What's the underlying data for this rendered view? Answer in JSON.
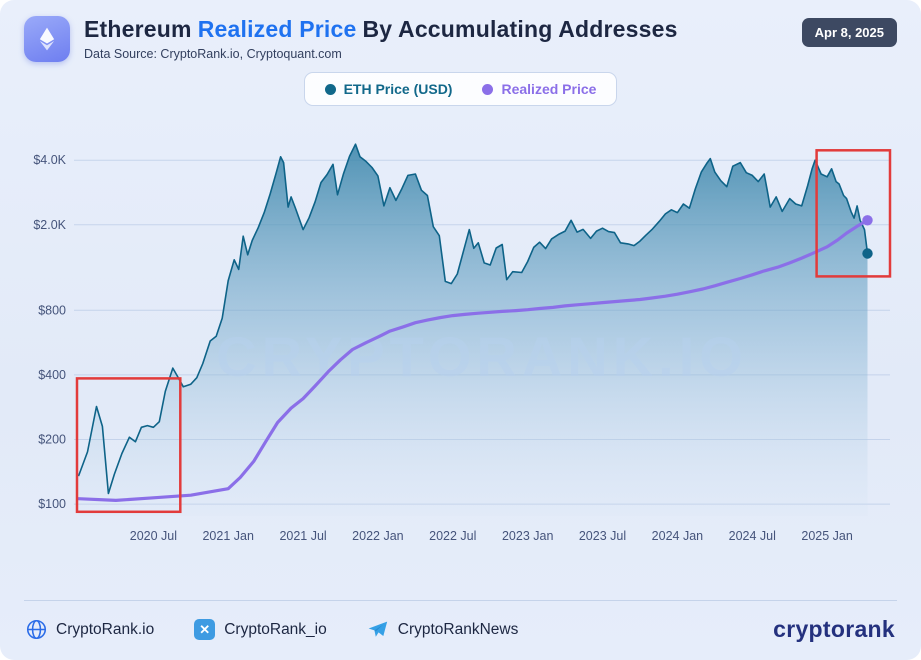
{
  "header": {
    "title_part1": "Ethereum",
    "title_highlight": "Realized Price",
    "title_part2": "By Accumulating Addresses",
    "subtitle": "Data Source: CryptoRank.io, Cryptoquant.com",
    "date_badge": "Apr 8, 2025"
  },
  "legend": {
    "items": [
      {
        "label": "ETH Price (USD)",
        "color": "#11688a"
      },
      {
        "label": "Realized Price",
        "color": "#8b6fe8"
      }
    ]
  },
  "watermark": "CRYPTORANK.IO",
  "footer": {
    "links": [
      {
        "icon": "globe-icon",
        "label": "CryptoRank.io"
      },
      {
        "icon": "x-icon",
        "label": "CryptoRank_io"
      },
      {
        "icon": "telegram-icon",
        "label": "CryptoRankNews"
      }
    ],
    "brand": "cryptorank"
  },
  "chart_data": {
    "type": "line",
    "y_scale": "log",
    "grid": "horizontal",
    "legend_position": "top-center",
    "xlim": [
      2019.97,
      2025.42
    ],
    "ylim": [
      88,
      5300
    ],
    "y_ticks": [
      {
        "value": 100,
        "label": "$100"
      },
      {
        "value": 200,
        "label": "$200"
      },
      {
        "value": 400,
        "label": "$400"
      },
      {
        "value": 800,
        "label": "$800"
      },
      {
        "value": 2000,
        "label": "$2.0K"
      },
      {
        "value": 4000,
        "label": "$4.0K"
      }
    ],
    "x_ticks": [
      {
        "value": 2020.5,
        "label": "2020 Jul"
      },
      {
        "value": 2021.0,
        "label": "2021 Jan"
      },
      {
        "value": 2021.5,
        "label": "2021 Jul"
      },
      {
        "value": 2022.0,
        "label": "2022 Jan"
      },
      {
        "value": 2022.5,
        "label": "2022 Jul"
      },
      {
        "value": 2023.0,
        "label": "2023 Jan"
      },
      {
        "value": 2023.5,
        "label": "2023 Jul"
      },
      {
        "value": 2024.0,
        "label": "2024 Jan"
      },
      {
        "value": 2024.5,
        "label": "2024 Jul"
      },
      {
        "value": 2025.0,
        "label": "2025 Jan"
      }
    ],
    "series": [
      {
        "name": "ETH Price (USD)",
        "style": "area",
        "color": "#0e6388",
        "x": [
          2020.0,
          2020.06,
          2020.12,
          2020.16,
          2020.2,
          2020.24,
          2020.29,
          2020.34,
          2020.38,
          2020.42,
          2020.46,
          2020.5,
          2020.54,
          2020.58,
          2020.63,
          2020.66,
          2020.7,
          2020.75,
          2020.79,
          2020.83,
          2020.88,
          2020.92,
          2020.96,
          2021.0,
          2021.04,
          2021.07,
          2021.1,
          2021.13,
          2021.16,
          2021.2,
          2021.24,
          2021.28,
          2021.32,
          2021.35,
          2021.37,
          2021.4,
          2021.42,
          2021.45,
          2021.5,
          2021.54,
          2021.58,
          2021.62,
          2021.66,
          2021.7,
          2021.73,
          2021.77,
          2021.81,
          2021.85,
          2021.88,
          2021.92,
          2021.96,
          2022.0,
          2022.04,
          2022.08,
          2022.12,
          2022.16,
          2022.2,
          2022.25,
          2022.29,
          2022.33,
          2022.37,
          2022.41,
          2022.45,
          2022.49,
          2022.53,
          2022.58,
          2022.61,
          2022.64,
          2022.67,
          2022.71,
          2022.75,
          2022.79,
          2022.83,
          2022.86,
          2022.9,
          2022.96,
          2023.0,
          2023.04,
          2023.08,
          2023.12,
          2023.16,
          2023.21,
          2023.25,
          2023.29,
          2023.33,
          2023.37,
          2023.42,
          2023.46,
          2023.5,
          2023.54,
          2023.58,
          2023.62,
          2023.67,
          2023.71,
          2023.75,
          2023.79,
          2023.83,
          2023.88,
          2023.92,
          2023.96,
          2024.0,
          2024.04,
          2024.08,
          2024.12,
          2024.16,
          2024.2,
          2024.22,
          2024.25,
          2024.29,
          2024.33,
          2024.37,
          2024.42,
          2024.46,
          2024.5,
          2024.54,
          2024.58,
          2024.6,
          2024.62,
          2024.66,
          2024.7,
          2024.75,
          2024.79,
          2024.83,
          2024.87,
          2024.9,
          2024.92,
          2024.96,
          2025.0,
          2025.03,
          2025.06,
          2025.08,
          2025.11,
          2025.13,
          2025.16,
          2025.18,
          2025.2,
          2025.22,
          2025.25,
          2025.27
        ],
        "values": [
          135,
          175,
          285,
          230,
          112,
          138,
          172,
          205,
          195,
          228,
          232,
          228,
          242,
          335,
          430,
          395,
          352,
          362,
          388,
          452,
          575,
          605,
          735,
          1100,
          1375,
          1240,
          1770,
          1450,
          1690,
          1940,
          2280,
          2780,
          3480,
          4150,
          3900,
          2420,
          2700,
          2380,
          1900,
          2160,
          2560,
          3150,
          3430,
          3830,
          2760,
          3460,
          4170,
          4750,
          4150,
          3950,
          3700,
          3380,
          2450,
          2980,
          2600,
          2950,
          3400,
          3450,
          2900,
          2740,
          1960,
          1780,
          1090,
          1065,
          1180,
          1590,
          1900,
          1555,
          1650,
          1330,
          1300,
          1560,
          1620,
          1110,
          1210,
          1200,
          1350,
          1570,
          1660,
          1550,
          1720,
          1810,
          1870,
          2100,
          1850,
          1905,
          1730,
          1870,
          1930,
          1860,
          1840,
          1650,
          1630,
          1600,
          1680,
          1790,
          1900,
          2080,
          2250,
          2350,
          2280,
          2500,
          2390,
          2950,
          3520,
          3900,
          4070,
          3520,
          3210,
          3010,
          3750,
          3900,
          3500,
          3400,
          3180,
          3450,
          2900,
          2420,
          2700,
          2310,
          2650,
          2500,
          2450,
          3050,
          3650,
          4000,
          3450,
          3350,
          3650,
          3180,
          3100,
          2740,
          2650,
          2300,
          2150,
          2450,
          2100,
          1900,
          1470
        ]
      },
      {
        "name": "Realized Price",
        "style": "line",
        "color": "#8b6fe8",
        "x": [
          2020.0,
          2020.25,
          2020.5,
          2020.75,
          2021.0,
          2021.08,
          2021.17,
          2021.25,
          2021.33,
          2021.42,
          2021.5,
          2021.58,
          2021.67,
          2021.75,
          2021.83,
          2021.92,
          2022.0,
          2022.08,
          2022.17,
          2022.25,
          2022.33,
          2022.42,
          2022.5,
          2022.58,
          2022.67,
          2022.75,
          2022.83,
          2022.92,
          2023.0,
          2023.08,
          2023.17,
          2023.25,
          2023.33,
          2023.42,
          2023.5,
          2023.58,
          2023.67,
          2023.75,
          2023.83,
          2023.92,
          2024.0,
          2024.08,
          2024.17,
          2024.25,
          2024.33,
          2024.42,
          2024.5,
          2024.58,
          2024.67,
          2024.75,
          2024.83,
          2024.92,
          2025.0,
          2025.07,
          2025.13,
          2025.2,
          2025.27
        ],
        "values": [
          106,
          104,
          107,
          110,
          118,
          133,
          158,
          195,
          240,
          280,
          310,
          355,
          415,
          470,
          525,
          565,
          600,
          640,
          670,
          700,
          720,
          740,
          755,
          765,
          775,
          783,
          790,
          797,
          805,
          815,
          825,
          838,
          848,
          858,
          868,
          878,
          888,
          898,
          912,
          930,
          950,
          975,
          1005,
          1040,
          1080,
          1125,
          1170,
          1220,
          1270,
          1330,
          1400,
          1490,
          1580,
          1700,
          1830,
          1970,
          2100
        ]
      }
    ],
    "highlights": [
      {
        "x": [
          2019.99,
          2020.68
        ],
        "y": [
          92,
          385
        ],
        "color": "#e23b3b"
      },
      {
        "x": [
          2024.93,
          2025.42
        ],
        "y": [
          1150,
          4450
        ],
        "color": "#e23b3b"
      }
    ]
  }
}
